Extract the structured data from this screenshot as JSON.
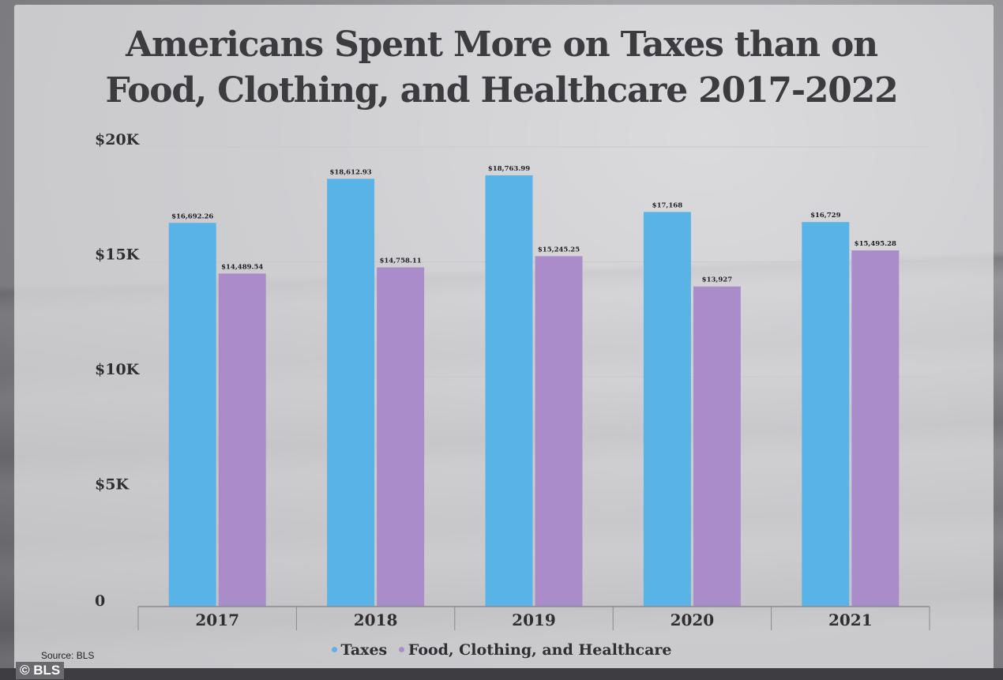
{
  "colors": {
    "taxes": "#5ab3e6",
    "food": "#ab8ccb",
    "grid": "#c9c9cc",
    "axis": "#8a8a8e"
  },
  "source": "Source: BLS",
  "credit": "© BLS",
  "chart_data": {
    "type": "bar",
    "title": "Americans Spent More on Taxes than on Food, Clothing, and Healthcare 2017-2022",
    "title_lines": [
      "Americans Spent More on Taxes than on",
      "Food, Clothing, and Healthcare 2017-2022"
    ],
    "xlabel": "",
    "ylabel": "",
    "categories": [
      "2017",
      "2018",
      "2019",
      "2020",
      "2021"
    ],
    "ylim": [
      0,
      20000
    ],
    "yticks": [
      0,
      5000,
      10000,
      15000,
      20000
    ],
    "ytick_labels": [
      "0",
      "$5K",
      "$10K",
      "$15K",
      "$20K"
    ],
    "grid": true,
    "legend_position": "bottom",
    "series": [
      {
        "name": "Taxes",
        "values": [
          16692.26,
          18612.93,
          18763.99,
          17168,
          16729
        ],
        "labels": [
          "$16,692.26",
          "$18,612.93",
          "$18,763.99",
          "$17,168",
          "$16,729"
        ]
      },
      {
        "name": "Food, Clothing, and Healthcare",
        "values": [
          14489.54,
          14758.11,
          15245.25,
          13927,
          15495.28
        ],
        "labels": [
          "$14,489.54",
          "$14,758.11",
          "$15,245.25",
          "$13,927",
          "$15,495.28"
        ]
      }
    ]
  }
}
